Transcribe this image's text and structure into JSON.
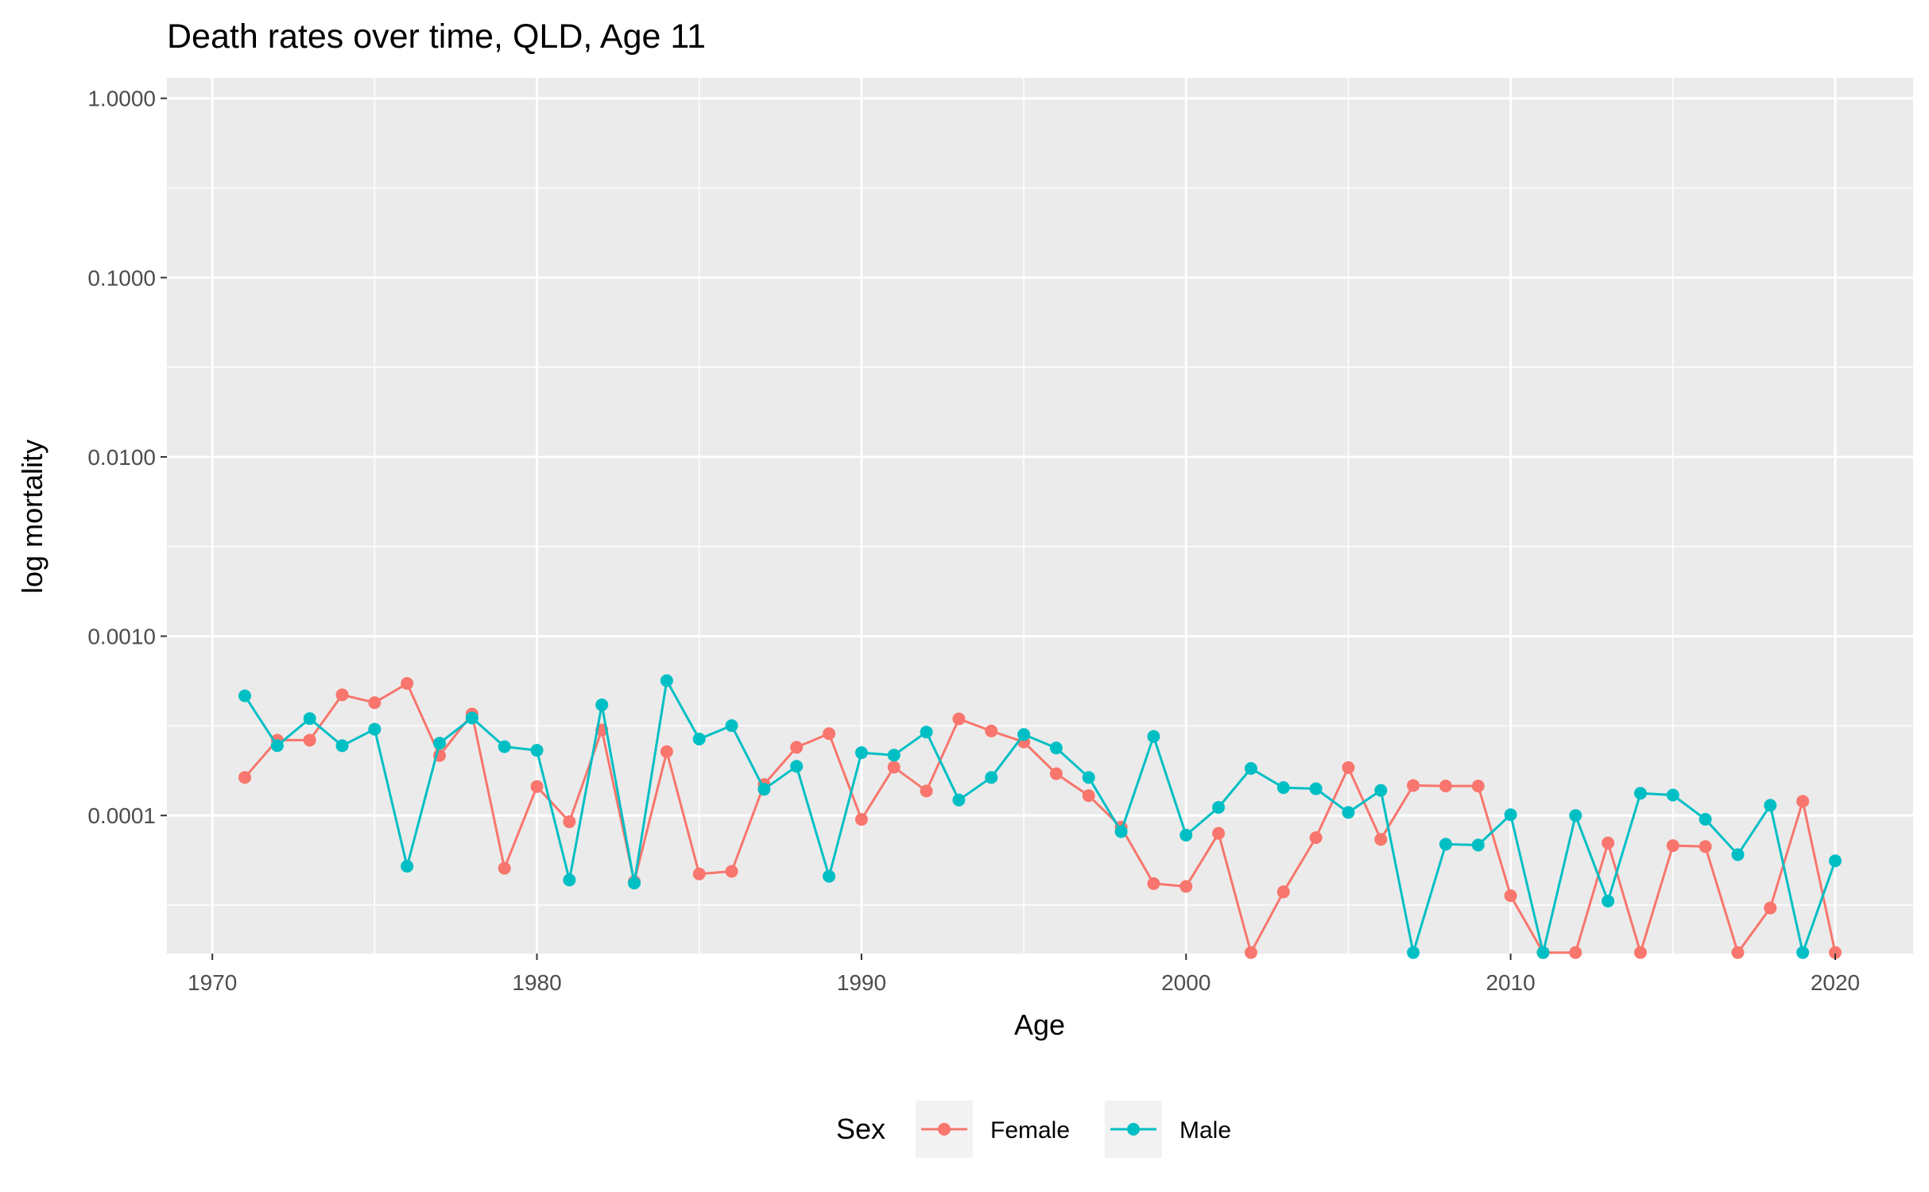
{
  "chart_data": {
    "type": "line",
    "title": "Death rates over time, QLD, Age 11",
    "xlabel": "Age",
    "ylabel": "log mortality",
    "yscale": "log10",
    "xlim": [
      1968.6,
      2022.4
    ],
    "ylim": [
      1.697e-05,
      1.3
    ],
    "x_ticks": [
      1970,
      1980,
      1990,
      2000,
      2010,
      2020
    ],
    "x_tick_labels": [
      "1970",
      "1980",
      "1990",
      "2000",
      "2010",
      "2020"
    ],
    "y_ticks": [
      0.0001,
      0.001,
      0.01,
      0.1,
      1
    ],
    "y_tick_labels": [
      "0.0001",
      "0.0010",
      "0.0100",
      "0.1000",
      "1.0000"
    ],
    "grid": true,
    "legend": {
      "title": "Sex",
      "position": "bottom"
    },
    "x": [
      1971,
      1972,
      1973,
      1974,
      1975,
      1976,
      1977,
      1978,
      1979,
      1980,
      1981,
      1982,
      1983,
      1984,
      1985,
      1986,
      1987,
      1988,
      1989,
      1990,
      1991,
      1992,
      1993,
      1994,
      1995,
      1996,
      1997,
      1998,
      1999,
      2000,
      2001,
      2002,
      2003,
      2004,
      2005,
      2006,
      2007,
      2008,
      2009,
      2010,
      2011,
      2012,
      2013,
      2014,
      2015,
      2016,
      2017,
      2018,
      2019,
      2020
    ],
    "series": [
      {
        "name": "Female",
        "color": "#F8766D",
        "values": [
          0.000163,
          0.000263,
          0.000263,
          0.000471,
          0.000426,
          0.000545,
          0.000216,
          0.000368,
          5.08e-05,
          0.000145,
          9.23e-05,
          0.0003,
          4.28e-05,
          0.000227,
          4.72e-05,
          4.88e-05,
          0.000149,
          0.00024,
          0.000286,
          9.51e-05,
          0.000186,
          0.000137,
          0.000346,
          0.000296,
          0.000257,
          0.000171,
          0.000129,
          8.61e-05,
          4.17e-05,
          4.02e-05,
          7.95e-05,
          1.72e-05,
          3.75e-05,
          7.52e-05,
          0.000185,
          7.36e-05,
          0.000147,
          0.000146,
          0.000146,
          3.57e-05,
          1.72e-05,
          1.72e-05,
          7.03e-05,
          1.72e-05,
          6.79e-05,
          6.71e-05,
          1.72e-05,
          3.05e-05,
          0.00012,
          1.72e-05
        ]
      },
      {
        "name": "Male",
        "color": "#00BFC4",
        "values": [
          0.000465,
          0.000245,
          0.000347,
          0.000245,
          0.000303,
          5.21e-05,
          0.000253,
          0.00035,
          0.000242,
          0.000231,
          4.37e-05,
          0.000414,
          4.2e-05,
          0.000565,
          0.000267,
          0.000317,
          0.00014,
          0.000188,
          4.58e-05,
          0.000224,
          0.000217,
          0.000292,
          0.000122,
          0.000163,
          0.000283,
          0.000238,
          0.000163,
          8.13e-05,
          0.000276,
          7.77e-05,
          0.000111,
          0.000183,
          0.000143,
          0.000141,
          0.000104,
          0.000138,
          1.72e-05,
          6.91e-05,
          6.84e-05,
          0.000101,
          1.72e-05,
          0.0001,
          3.33e-05,
          0.000133,
          0.00013,
          9.52e-05,
          6.05e-05,
          0.000114,
          1.72e-05,
          5.59e-05
        ]
      }
    ]
  }
}
